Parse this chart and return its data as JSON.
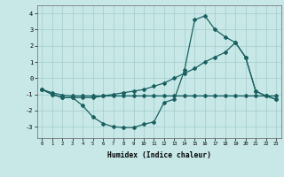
{
  "xlabel": "Humidex (Indice chaleur)",
  "bg_color": "#c8e8e8",
  "grid_color": "#a8d0d0",
  "line_color": "#1a6060",
  "x": [
    0,
    1,
    2,
    3,
    4,
    5,
    6,
    7,
    8,
    9,
    10,
    11,
    12,
    13,
    14,
    15,
    16,
    17,
    18,
    19,
    20,
    21,
    22,
    23
  ],
  "line1": [
    -0.7,
    -1.0,
    -1.2,
    -1.2,
    -1.7,
    -2.4,
    -2.8,
    -3.0,
    -3.05,
    -3.05,
    -2.85,
    -2.7,
    -1.5,
    -1.3,
    0.5,
    3.6,
    3.85,
    3.0,
    2.55,
    2.2,
    1.3,
    -0.8,
    -1.1,
    -1.3
  ],
  "line2": [
    -0.7,
    -1.0,
    -1.2,
    -1.2,
    -1.2,
    -1.2,
    -1.1,
    -1.0,
    -0.9,
    -0.8,
    -0.7,
    -0.5,
    -0.3,
    0.0,
    0.3,
    0.6,
    1.0,
    1.3,
    1.6,
    2.2,
    1.3,
    -0.8,
    -1.1,
    -1.3
  ],
  "line3": [
    -0.7,
    -0.9,
    -1.05,
    -1.1,
    -1.1,
    -1.1,
    -1.1,
    -1.1,
    -1.1,
    -1.1,
    -1.1,
    -1.1,
    -1.1,
    -1.1,
    -1.1,
    -1.1,
    -1.1,
    -1.1,
    -1.1,
    -1.1,
    -1.1,
    -1.1,
    -1.1,
    -1.1
  ],
  "yticks": [
    -3,
    -2,
    -1,
    0,
    1,
    2,
    3,
    4
  ],
  "ylim": [
    -3.7,
    4.5
  ],
  "xlim": [
    -0.5,
    23.5
  ]
}
